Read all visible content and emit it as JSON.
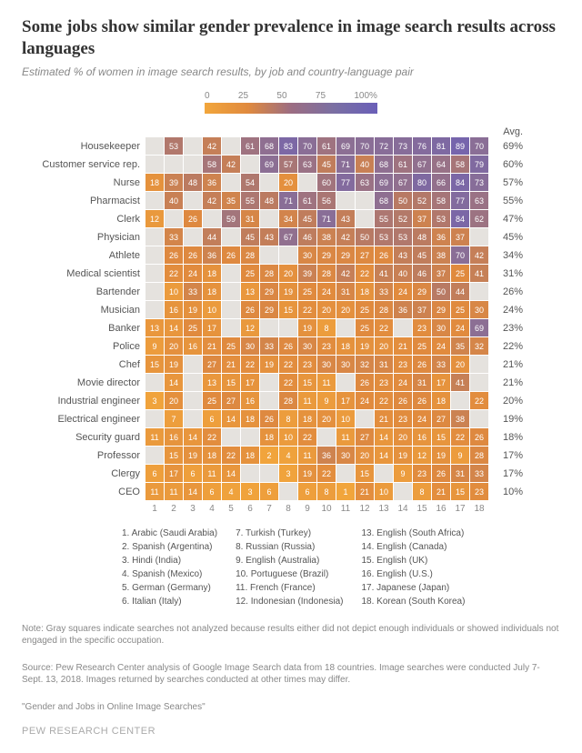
{
  "title": "Some jobs show similar gender prevalence in image search results across languages",
  "subtitle": "Estimated % of women in image search results, by job and country-language pair",
  "legend": {
    "ticks": [
      "0",
      "25",
      "50",
      "75",
      "100%"
    ],
    "gradient_stops": [
      "#f2a63c",
      "#e08a3e",
      "#9c6d82",
      "#7a6fa3",
      "#6a5fb8"
    ]
  },
  "avg_header": "Avg.",
  "jobs": [
    {
      "label": "Housekeeper",
      "avg": "69%",
      "cells": [
        null,
        53,
        null,
        42,
        null,
        61,
        68,
        83,
        70,
        61,
        69,
        70,
        72,
        73,
        76,
        81,
        89,
        70
      ]
    },
    {
      "label": "Customer service rep.",
      "avg": "60%",
      "cells": [
        null,
        null,
        null,
        58,
        42,
        null,
        69,
        57,
        63,
        45,
        71,
        40,
        68,
        61,
        67,
        64,
        58,
        79
      ]
    },
    {
      "label": "Nurse",
      "avg": "57%",
      "cells": [
        18,
        39,
        48,
        36,
        null,
        54,
        null,
        20,
        null,
        60,
        77,
        63,
        69,
        67,
        80,
        66,
        84,
        73
      ]
    },
    {
      "label": "Pharmacist",
      "avg": "55%",
      "cells": [
        null,
        40,
        null,
        42,
        35,
        55,
        48,
        71,
        61,
        56,
        null,
        null,
        68,
        50,
        52,
        58,
        77,
        63
      ]
    },
    {
      "label": "Clerk",
      "avg": "47%",
      "cells": [
        12,
        null,
        26,
        null,
        59,
        31,
        null,
        34,
        45,
        71,
        43,
        null,
        55,
        52,
        37,
        53,
        84,
        62
      ]
    },
    {
      "label": "Physician",
      "avg": "45%",
      "cells": [
        null,
        33,
        null,
        44,
        null,
        45,
        43,
        67,
        46,
        38,
        42,
        50,
        53,
        53,
        48,
        36,
        37,
        null
      ]
    },
    {
      "label": "Athlete",
      "avg": "34%",
      "cells": [
        null,
        26,
        26,
        36,
        26,
        28,
        null,
        null,
        30,
        29,
        29,
        27,
        26,
        43,
        45,
        38,
        70,
        42
      ]
    },
    {
      "label": "Medical scientist",
      "avg": "31%",
      "cells": [
        null,
        22,
        24,
        18,
        null,
        25,
        28,
        20,
        39,
        28,
        42,
        22,
        41,
        40,
        46,
        37,
        25,
        41
      ]
    },
    {
      "label": "Bartender",
      "avg": "26%",
      "cells": [
        null,
        10,
        33,
        18,
        null,
        13,
        29,
        19,
        25,
        24,
        31,
        18,
        33,
        24,
        29,
        50,
        44,
        null
      ]
    },
    {
      "label": "Musician",
      "avg": "24%",
      "cells": [
        null,
        16,
        19,
        10,
        null,
        26,
        29,
        15,
        22,
        20,
        20,
        25,
        28,
        36,
        37,
        29,
        25,
        30
      ]
    },
    {
      "label": "Banker",
      "avg": "23%",
      "cells": [
        13,
        14,
        25,
        17,
        null,
        12,
        null,
        null,
        19,
        8,
        null,
        25,
        22,
        null,
        23,
        30,
        24,
        69
      ]
    },
    {
      "label": "Police",
      "avg": "22%",
      "cells": [
        9,
        20,
        16,
        21,
        25,
        30,
        33,
        26,
        30,
        23,
        18,
        19,
        20,
        21,
        25,
        24,
        35,
        32
      ]
    },
    {
      "label": "Chef",
      "avg": "21%",
      "cells": [
        15,
        19,
        null,
        27,
        21,
        22,
        19,
        22,
        23,
        30,
        30,
        32,
        31,
        23,
        26,
        33,
        20,
        null
      ]
    },
    {
      "label": "Movie director",
      "avg": "21%",
      "cells": [
        null,
        14,
        null,
        13,
        15,
        17,
        null,
        22,
        15,
        11,
        null,
        26,
        23,
        24,
        31,
        17,
        41,
        null
      ]
    },
    {
      "label": "Industrial engineer",
      "avg": "20%",
      "cells": [
        3,
        20,
        null,
        25,
        27,
        16,
        null,
        28,
        11,
        9,
        17,
        24,
        22,
        26,
        26,
        18,
        null,
        22
      ]
    },
    {
      "label": "Electrical engineer",
      "avg": "19%",
      "cells": [
        null,
        7,
        null,
        6,
        14,
        18,
        26,
        8,
        18,
        20,
        10,
        null,
        21,
        23,
        24,
        27,
        38,
        null
      ]
    },
    {
      "label": "Security guard",
      "avg": "18%",
      "cells": [
        11,
        16,
        14,
        22,
        null,
        null,
        18,
        10,
        22,
        null,
        11,
        27,
        14,
        20,
        16,
        15,
        22,
        26
      ]
    },
    {
      "label": "Professor",
      "avg": "17%",
      "cells": [
        null,
        15,
        19,
        18,
        22,
        18,
        2,
        4,
        11,
        36,
        30,
        20,
        14,
        19,
        12,
        19,
        9,
        28
      ]
    },
    {
      "label": "Clergy",
      "avg": "17%",
      "cells": [
        6,
        17,
        6,
        11,
        14,
        null,
        null,
        3,
        19,
        22,
        null,
        15,
        null,
        9,
        23,
        26,
        31,
        33
      ]
    },
    {
      "label": "CEO",
      "avg": "10%",
      "cells": [
        11,
        11,
        14,
        6,
        4,
        3,
        6,
        null,
        6,
        8,
        1,
        21,
        10,
        null,
        8,
        21,
        15,
        23
      ]
    }
  ],
  "col_numbers": [
    "1",
    "2",
    "3",
    "4",
    "5",
    "6",
    "7",
    "8",
    "9",
    "10",
    "11",
    "12",
    "13",
    "14",
    "15",
    "16",
    "17",
    "18"
  ],
  "countries": [
    [
      "1. Arabic (Saudi Arabia)",
      "2. Spanish (Argentina)",
      "3. Hindi (India)",
      "4. Spanish (Mexico)",
      "5. German (Germany)",
      "6. Italian (Italy)"
    ],
    [
      "7. Turkish (Turkey)",
      "8. Russian (Russia)",
      "9. English (Australia)",
      "10. Portuguese (Brazil)",
      "11. French (France)",
      "12. Indonesian (Indonesia)"
    ],
    [
      "13. English (South Africa)",
      "14. English (Canada)",
      "15. English (UK)",
      "16. English (U.S.)",
      "17. Japanese (Japan)",
      "18. Korean (South Korea)"
    ]
  ],
  "note1": "Note: Gray squares indicate searches not analyzed because results either did not depict enough individuals or showed individuals not engaged in the specific occupation.",
  "note2": "Source: Pew Research Center analysis of Google Image Search data from 18 countries. Image searches were conducted July 7-Sept. 13, 2018. Images returned by searches conducted at other times may differ.",
  "note3": "\"Gender and Jobs in Online Image Searches\"",
  "footer": "PEW RESEARCH CENTER",
  "color_scale": {
    "stops": [
      {
        "v": 0,
        "c": "#f2a63c"
      },
      {
        "v": 25,
        "c": "#e08a3e"
      },
      {
        "v": 50,
        "c": "#b87a64"
      },
      {
        "v": 70,
        "c": "#8a6e96"
      },
      {
        "v": 100,
        "c": "#6a5fb8"
      }
    ]
  }
}
